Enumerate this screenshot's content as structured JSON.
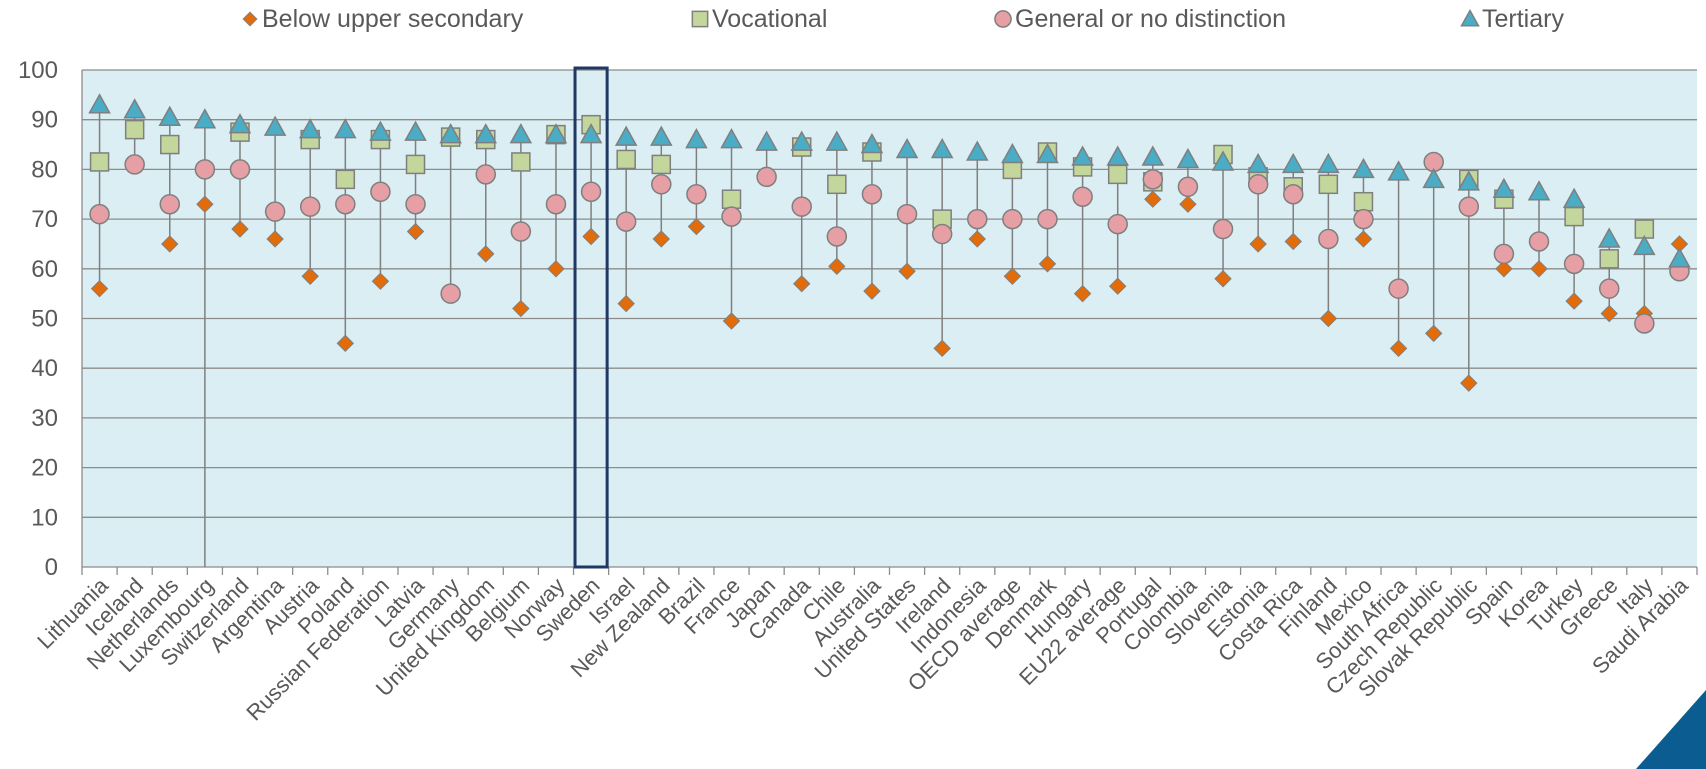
{
  "chart_data": {
    "type": "scatter",
    "ylim": [
      0,
      100
    ],
    "yticks": [
      0,
      10,
      20,
      30,
      40,
      50,
      60,
      70,
      80,
      90,
      100
    ],
    "grid": true,
    "legend_position": "top",
    "highlighted_category": "Sweden",
    "categories": [
      "Lithuania",
      "Iceland",
      "Netherlands",
      "Luxembourg",
      "Switzerland",
      "Argentina",
      "Austria",
      "Poland",
      "Russian Federation",
      "Latvia",
      "Germany",
      "United Kingdom",
      "Belgium",
      "Norway",
      "Sweden",
      "Israel",
      "New Zealand",
      "Brazil",
      "France",
      "Japan",
      "Canada",
      "Chile",
      "Australia",
      "United States",
      "Ireland",
      "Indonesia",
      "OECD average",
      "Denmark",
      "Hungary",
      "EU22 average",
      "Portugal",
      "Colombia",
      "Slovenia",
      "Estonia",
      "Costa Rica",
      "Finland",
      "Mexico",
      "South Africa",
      "Czech Republic",
      "Slovak Republic",
      "Spain",
      "Korea",
      "Turkey",
      "Greece",
      "Italy",
      "Saudi Arabia"
    ],
    "series": [
      {
        "name": "Below upper secondary",
        "marker": "diamond",
        "color": "#E36C0A",
        "values": [
          56,
          null,
          65,
          73,
          68,
          66,
          58.5,
          45,
          57.5,
          67.5,
          null,
          63,
          52,
          60,
          66.5,
          53,
          66,
          68.5,
          49.5,
          null,
          57,
          60.5,
          55.5,
          59.5,
          44,
          66,
          58.5,
          61,
          55,
          56.5,
          74,
          73,
          58,
          65,
          65.5,
          50,
          66,
          44,
          47,
          37,
          60,
          60,
          53.5,
          51,
          51,
          65
        ]
      },
      {
        "name": "Vocational",
        "marker": "square",
        "color": "#C3D69B",
        "values": [
          81.5,
          88,
          85,
          0,
          87.5,
          null,
          86,
          78,
          86,
          81,
          86.5,
          86,
          81.5,
          87,
          89,
          82,
          81,
          null,
          74,
          null,
          84.5,
          77,
          83.5,
          null,
          70,
          null,
          80,
          83.5,
          80.5,
          79,
          77.5,
          null,
          83,
          78.5,
          76.5,
          77,
          73.5,
          null,
          null,
          78,
          74,
          null,
          70.5,
          62,
          68,
          null
        ]
      },
      {
        "name": "General or no distinction",
        "marker": "circle",
        "color": "#E6A0A5",
        "values": [
          71,
          81,
          73,
          80,
          80,
          71.5,
          72.5,
          73,
          75.5,
          73,
          55,
          79,
          67.5,
          73,
          75.5,
          69.5,
          77,
          75,
          70.5,
          78.5,
          72.5,
          66.5,
          75,
          71,
          67,
          70,
          70,
          70,
          74.5,
          69,
          78,
          76.5,
          68,
          77,
          75,
          66,
          70,
          56,
          81.5,
          72.5,
          63,
          65.5,
          61,
          56,
          49,
          59.5
        ]
      },
      {
        "name": "Tertiary",
        "marker": "triangle",
        "color": "#4BACC6",
        "values": [
          93,
          92,
          90.5,
          90,
          89,
          88.5,
          88,
          88,
          87.5,
          87.5,
          87,
          87,
          87,
          87,
          87,
          86.5,
          86.5,
          86,
          86,
          85.5,
          85.5,
          85.5,
          85,
          84,
          84,
          83.5,
          83,
          83,
          82.5,
          82.5,
          82.5,
          82,
          81.5,
          81,
          81,
          81,
          80,
          79.5,
          78,
          77.5,
          76,
          75.5,
          74,
          66,
          64.5,
          62
        ]
      }
    ]
  }
}
